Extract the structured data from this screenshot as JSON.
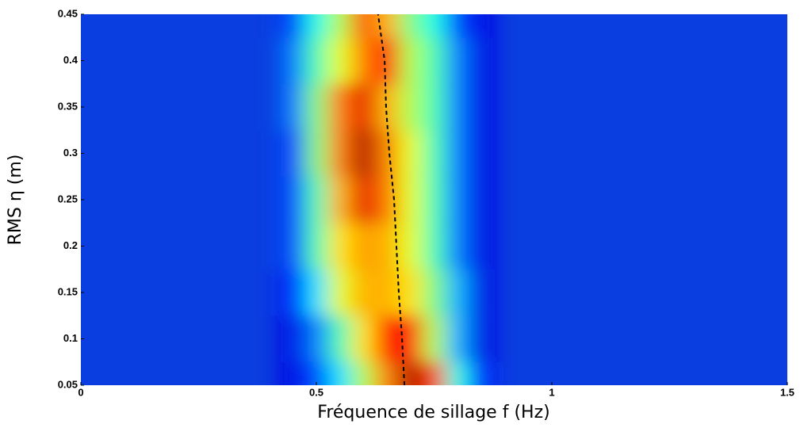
{
  "chart_data": {
    "type": "heatmap",
    "xlabel": "Fréquence de sillage f (Hz)",
    "ylabel": "RMS η (m)",
    "xlim": [
      0,
      1.5
    ],
    "ylim": [
      0.05,
      0.45
    ],
    "xticks": [
      0,
      0.5,
      1,
      1.5
    ],
    "yticks": [
      0.05,
      0.1,
      0.15,
      0.2,
      0.25,
      0.3,
      0.35,
      0.4,
      0.45
    ],
    "colormap": "jet",
    "zlim": [
      0,
      1
    ],
    "x": [
      0.45,
      0.5,
      0.55,
      0.6,
      0.65,
      0.7,
      0.75,
      0.8,
      0.85
    ],
    "y": [
      0.05,
      0.1,
      0.15,
      0.2,
      0.25,
      0.3,
      0.35,
      0.4,
      0.45
    ],
    "z": [
      [
        0.1,
        0.2,
        0.35,
        0.55,
        0.75,
        0.95,
        0.8,
        0.4,
        0.15
      ],
      [
        0.1,
        0.25,
        0.45,
        0.65,
        0.85,
        0.85,
        0.55,
        0.3,
        0.1
      ],
      [
        0.15,
        0.35,
        0.6,
        0.7,
        0.7,
        0.65,
        0.5,
        0.3,
        0.1
      ],
      [
        0.2,
        0.45,
        0.65,
        0.72,
        0.7,
        0.6,
        0.45,
        0.25,
        0.1
      ],
      [
        0.2,
        0.45,
        0.7,
        0.9,
        0.75,
        0.6,
        0.45,
        0.25,
        0.1
      ],
      [
        0.2,
        0.5,
        0.75,
        0.95,
        0.75,
        0.6,
        0.45,
        0.25,
        0.1
      ],
      [
        0.25,
        0.5,
        0.75,
        0.9,
        0.7,
        0.55,
        0.45,
        0.25,
        0.1
      ],
      [
        0.25,
        0.45,
        0.6,
        0.75,
        0.85,
        0.55,
        0.45,
        0.25,
        0.1
      ],
      [
        0.2,
        0.4,
        0.55,
        0.8,
        0.7,
        0.5,
        0.4,
        0.2,
        0.1
      ]
    ],
    "ridge": {
      "color": "#000000",
      "x": [
        0.687,
        0.682,
        0.675,
        0.67,
        0.665,
        0.655,
        0.648,
        0.645,
        0.631
      ],
      "y": [
        0.05,
        0.1,
        0.15,
        0.2,
        0.25,
        0.3,
        0.35,
        0.4,
        0.45
      ]
    }
  }
}
